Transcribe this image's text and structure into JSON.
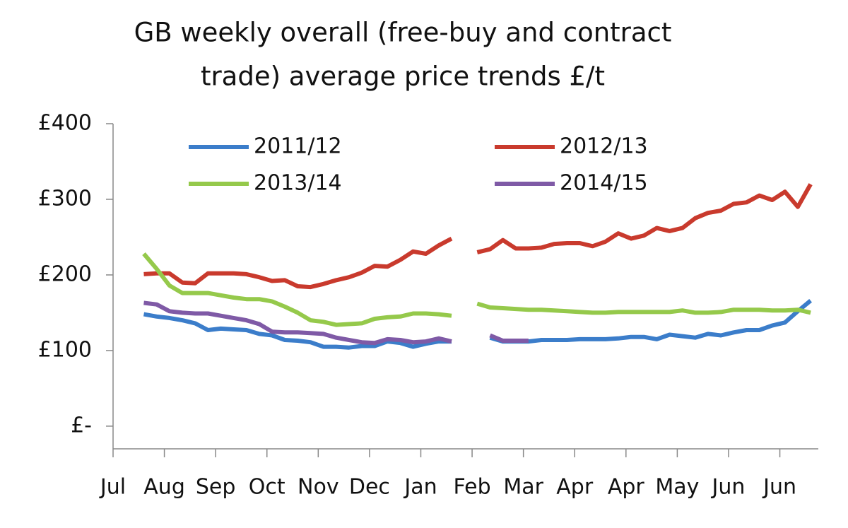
{
  "chart_data": {
    "type": "line",
    "title": [
      "GB weekly overall (free-buy and contract",
      "trade) average price trends £/t"
    ],
    "x": [
      2,
      3,
      4,
      5,
      6,
      7,
      8,
      9,
      10,
      11,
      12,
      13,
      14,
      15,
      16,
      17,
      18,
      19,
      20,
      21,
      22,
      23,
      24,
      25,
      26,
      27,
      28,
      29,
      30,
      31,
      32,
      33,
      34,
      35,
      36,
      37,
      38,
      39,
      40,
      41,
      42,
      43,
      44,
      45,
      46,
      47,
      48,
      49,
      50,
      51,
      52,
      53,
      54
    ],
    "xlim": [
      -0.4,
      54.6
    ],
    "xticks": [
      {
        "value": -0.4,
        "label": "Jul"
      },
      {
        "value": 3.6,
        "label": "Aug"
      },
      {
        "value": 7.6,
        "label": "Sep"
      },
      {
        "value": 11.6,
        "label": "Oct"
      },
      {
        "value": 15.6,
        "label": "Nov"
      },
      {
        "value": 19.6,
        "label": "Dec"
      },
      {
        "value": 23.6,
        "label": "Jan"
      },
      {
        "value": 27.6,
        "label": "Feb"
      },
      {
        "value": 31.6,
        "label": "Mar"
      },
      {
        "value": 35.6,
        "label": "Apr"
      },
      {
        "value": 39.6,
        "label": "Apr"
      },
      {
        "value": 43.6,
        "label": "May"
      },
      {
        "value": 47.6,
        "label": "Jun"
      },
      {
        "value": 51.6,
        "label": "Jun"
      }
    ],
    "ylim": [
      -30,
      400
    ],
    "yticks": [
      {
        "value": 0,
        "label": "£-"
      },
      {
        "value": 100,
        "label": "£100"
      },
      {
        "value": 200,
        "label": "£200"
      },
      {
        "value": 300,
        "label": "£300"
      },
      {
        "value": 400,
        "label": "£400"
      }
    ],
    "series": [
      {
        "name": "2011/12",
        "color": "#3b7dca",
        "values": [
          148,
          145,
          143,
          140,
          136,
          127,
          129,
          128,
          127,
          122,
          120,
          114,
          113,
          111,
          105,
          105,
          104,
          106,
          106,
          112,
          110,
          105,
          109,
          112,
          112,
          null,
          null,
          117,
          112,
          112,
          112,
          114,
          114,
          114,
          115,
          115,
          115,
          116,
          118,
          118,
          115,
          121,
          119,
          117,
          122,
          120,
          124,
          127,
          127,
          133,
          137,
          152,
          166
        ]
      },
      {
        "name": "2012/13",
        "color": "#c93a2d",
        "values": [
          201,
          202,
          202,
          190,
          189,
          202,
          202,
          202,
          201,
          197,
          192,
          193,
          185,
          184,
          188,
          193,
          197,
          203,
          212,
          211,
          220,
          231,
          228,
          239,
          248,
          null,
          230,
          234,
          246,
          235,
          235,
          236,
          241,
          242,
          242,
          238,
          244,
          255,
          248,
          252,
          262,
          258,
          262,
          275,
          282,
          285,
          294,
          296,
          305,
          299,
          310,
          290,
          320
        ]
      },
      {
        "name": "2013/14",
        "color": "#95c94b",
        "values": [
          228,
          208,
          186,
          176,
          176,
          176,
          173,
          170,
          168,
          168,
          165,
          158,
          150,
          140,
          138,
          134,
          135,
          136,
          142,
          144,
          145,
          149,
          149,
          148,
          146,
          null,
          162,
          157,
          156,
          155,
          154,
          154,
          153,
          152,
          151,
          150,
          150,
          151,
          151,
          151,
          151,
          151,
          153,
          150,
          150,
          151,
          154,
          154,
          154,
          153,
          153,
          154,
          150
        ]
      },
      {
        "name": "2014/15",
        "color": "#7f5aa6",
        "values": [
          163,
          161,
          152,
          150,
          149,
          149,
          146,
          143,
          140,
          135,
          125,
          124,
          124,
          123,
          122,
          117,
          114,
          111,
          110,
          115,
          114,
          111,
          112,
          116,
          112,
          null,
          null,
          120,
          113,
          113,
          113,
          null,
          null,
          null,
          null,
          null,
          null,
          null,
          null,
          null,
          null,
          null,
          null,
          null,
          null,
          null,
          null,
          null,
          null,
          null,
          null,
          null,
          null
        ]
      }
    ]
  }
}
